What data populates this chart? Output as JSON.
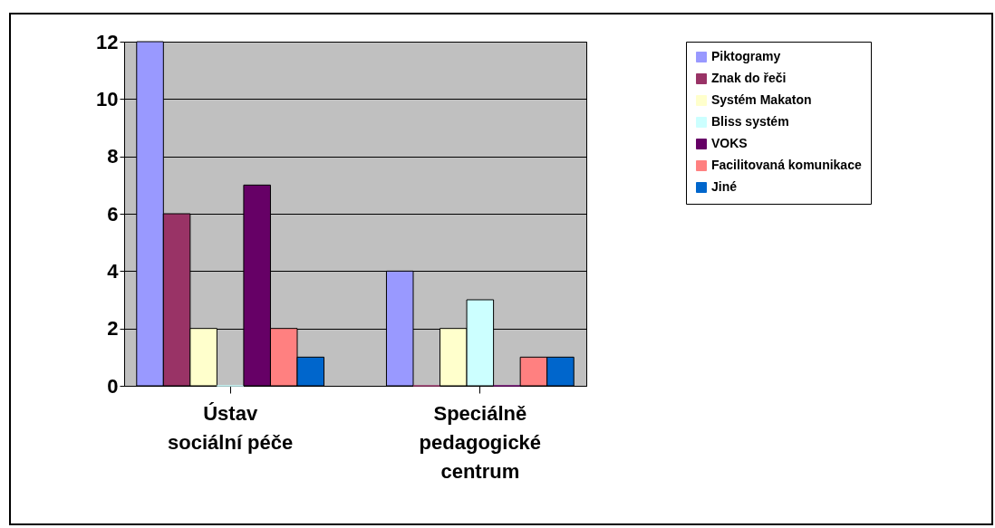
{
  "chart_data": {
    "type": "bar",
    "categories": [
      "Ústav sociální péče",
      "Speciálně pedagogické centrum"
    ],
    "series": [
      {
        "name": "Piktogramy",
        "color": "#9999ff",
        "values": [
          12,
          4
        ]
      },
      {
        "name": "Znak do řeči",
        "color": "#993366",
        "values": [
          6,
          0
        ]
      },
      {
        "name": "Systém Makaton",
        "color": "#ffffcc",
        "values": [
          2,
          2
        ]
      },
      {
        "name": "Bliss systém",
        "color": "#ccffff",
        "values": [
          0,
          3
        ]
      },
      {
        "name": "VOKS",
        "color": "#660066",
        "values": [
          7,
          0
        ]
      },
      {
        "name": "Facilitovaná komunikace",
        "color": "#ff8080",
        "values": [
          2,
          1
        ]
      },
      {
        "name": "Jiné",
        "color": "#0066cc",
        "values": [
          1,
          1
        ]
      }
    ],
    "ylim": [
      0,
      12
    ],
    "yticks": [
      0,
      2,
      4,
      6,
      8,
      10,
      12
    ],
    "grid": "y",
    "legend": "right"
  }
}
